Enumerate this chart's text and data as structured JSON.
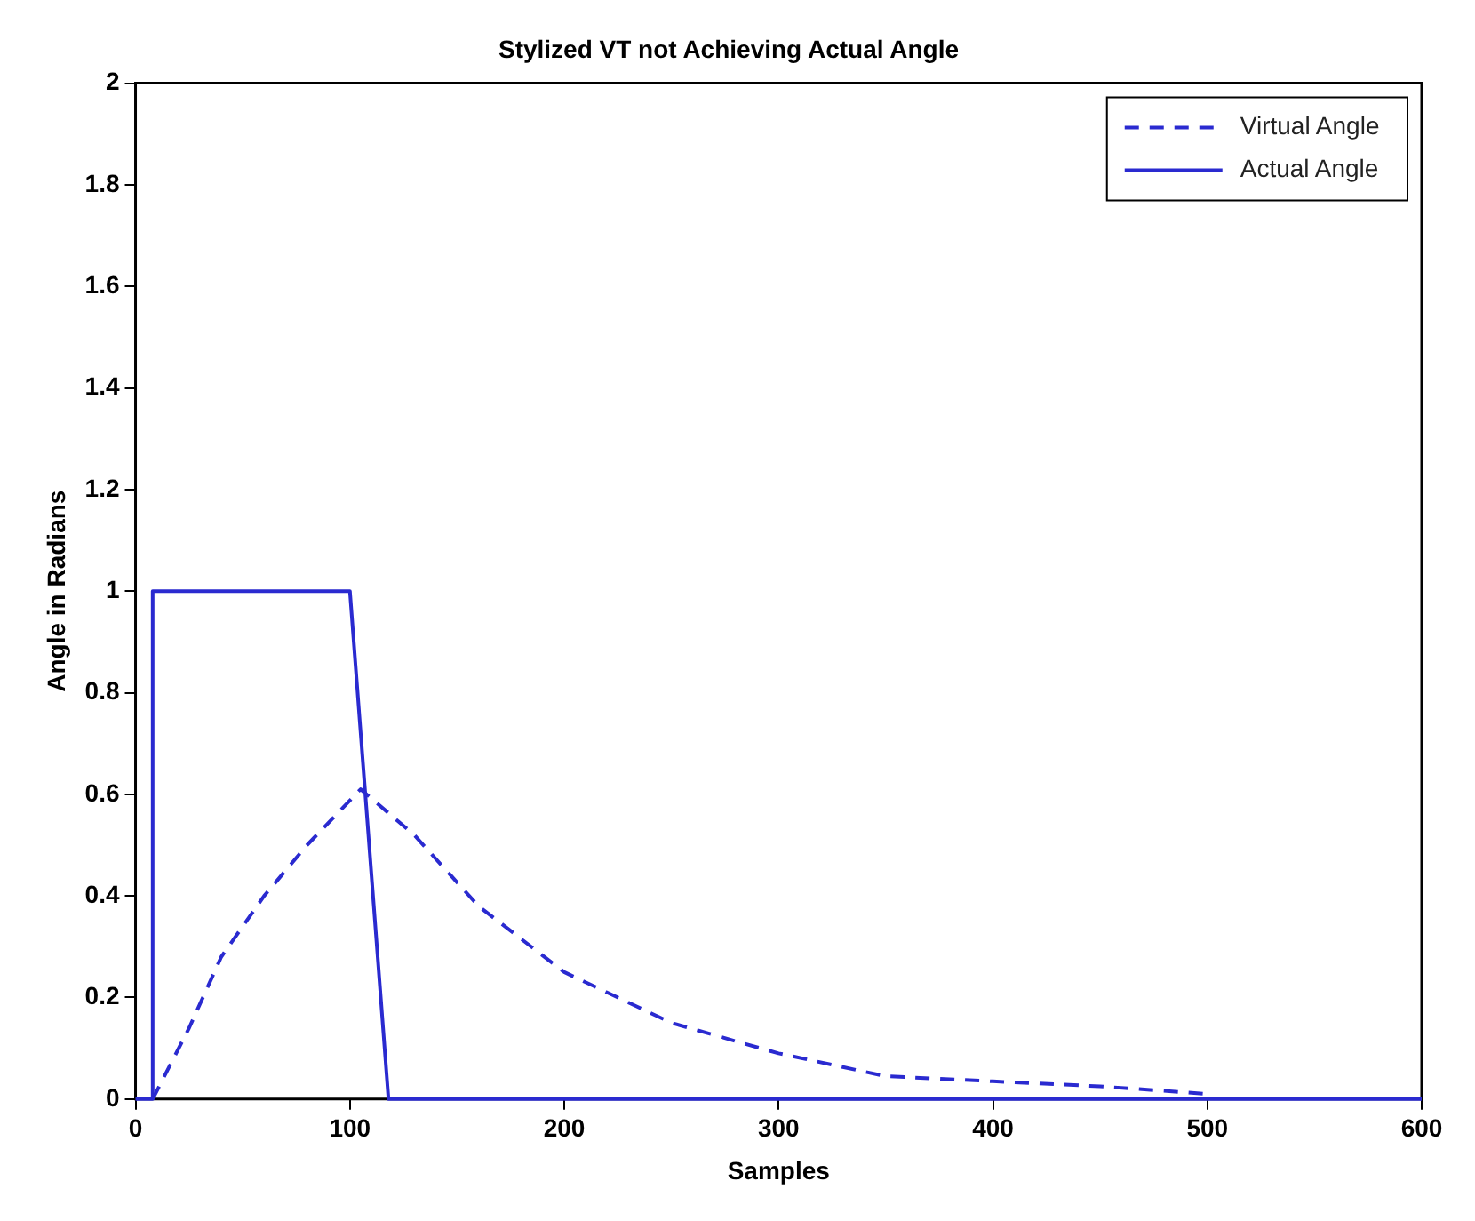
{
  "chart_data": {
    "type": "line",
    "title": "Stylized VT not Achieving Actual Angle",
    "xlabel": "Samples",
    "ylabel": "Angle in Radians",
    "xlim": [
      0,
      600
    ],
    "xticks": [
      0,
      100,
      200,
      300,
      400,
      500,
      600
    ],
    "ylim": [
      0,
      2
    ],
    "yticks": [
      0,
      0.2,
      0.4,
      0.6,
      0.8,
      1,
      1.2,
      1.4,
      1.6,
      1.8,
      2
    ],
    "grid": false,
    "legend": "top right",
    "marker": "none",
    "series": [
      {
        "name": "Virtual Angle",
        "color": "#2a2ad0",
        "line_style": "dashed",
        "x": [
          8,
          25,
          40,
          60,
          80,
          105,
          130,
          160,
          200,
          250,
          300,
          350,
          400,
          450,
          500
        ],
        "values": [
          0,
          0.14,
          0.28,
          0.4,
          0.5,
          0.61,
          0.52,
          0.38,
          0.25,
          0.15,
          0.09,
          0.045,
          0.035,
          0.025,
          0.01
        ]
      },
      {
        "name": "Actual Angle",
        "color": "#2a2ad0",
        "line_style": "solid",
        "x": [
          0,
          8,
          8,
          100,
          118,
          600
        ],
        "values": [
          0,
          0,
          1,
          1,
          0,
          0
        ]
      }
    ]
  }
}
